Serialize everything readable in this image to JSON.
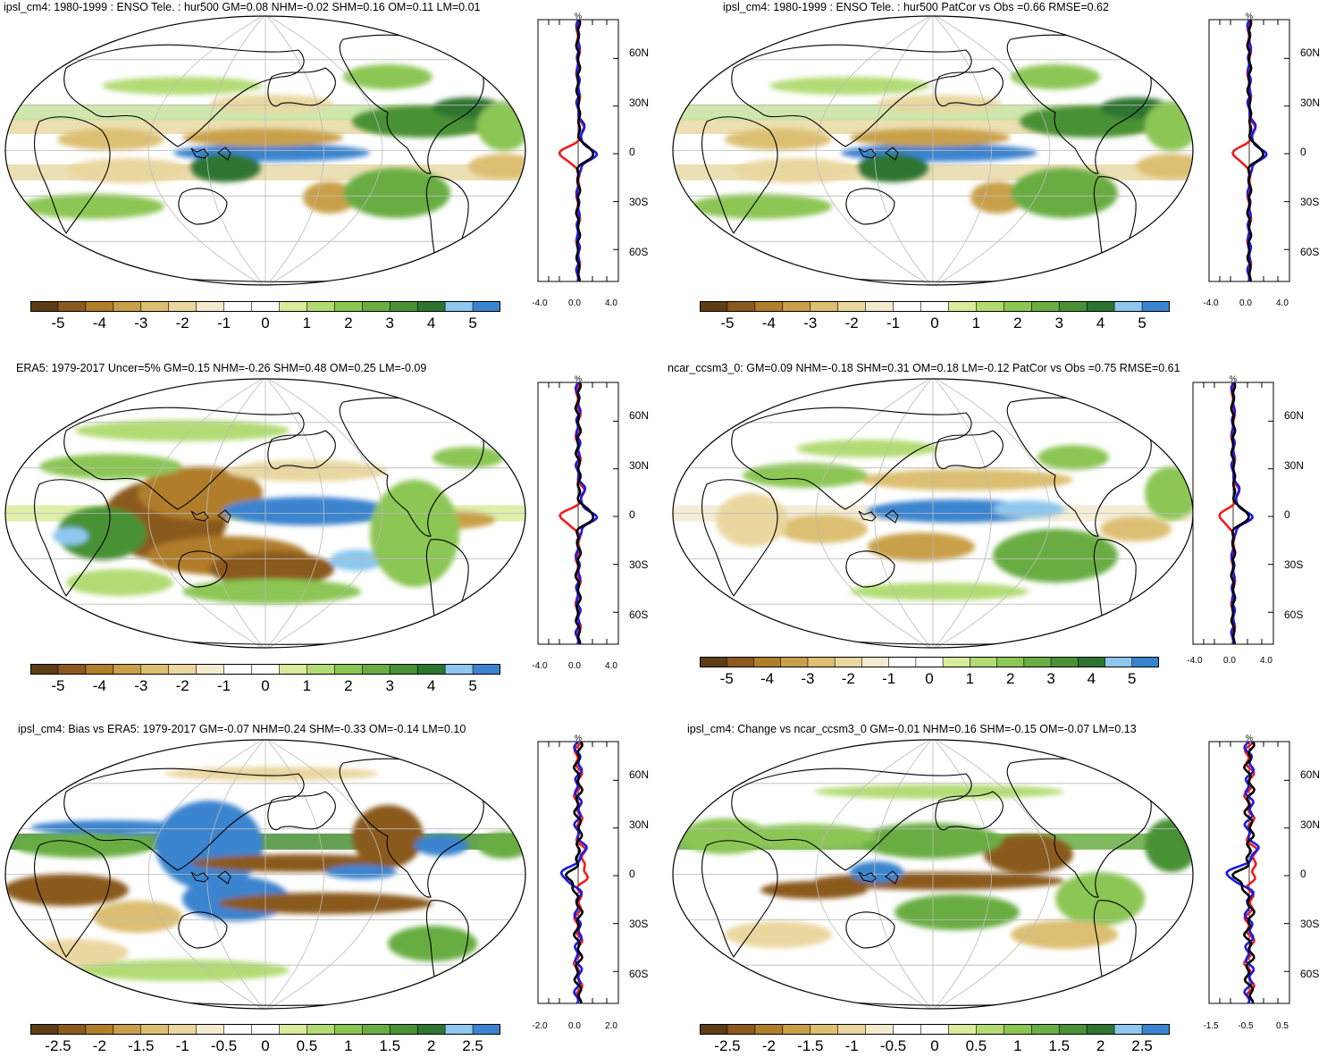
{
  "colors": {
    "scale_5": [
      "#5c3d14",
      "#8a5a1e",
      "#b07d2a",
      "#c9a04a",
      "#dcbf72",
      "#ead7a0",
      "#f3ead0",
      "#ffffff",
      "#ffffff",
      "#d8ec9c",
      "#b2db74",
      "#8cc654",
      "#69ad43",
      "#4a9136",
      "#2d7431",
      "#8ec8ee",
      "#3a84cf"
    ],
    "profile_red": "#ee1c1c",
    "profile_blue": "#1a1ae6",
    "profile_black": "#000000"
  },
  "panels": [
    {
      "id": "p1",
      "title": "ipsl_cm4: 1980-1999 : ENSO Tele. : hur500 GM=0.08 NHM=-0.02 SHM=0.16 OM=0.11 LM=0.01",
      "colorbar_labels": [
        "-5",
        "-4",
        "-3",
        "-2",
        "-1",
        "0",
        "1",
        "2",
        "3",
        "4",
        "5"
      ],
      "profile_xticks": [
        "-4.0",
        "0.0",
        "4.0"
      ],
      "profile_unit": "%",
      "lat_labels": [
        "60N",
        "30N",
        "0",
        "30S",
        "60S"
      ]
    },
    {
      "id": "p2",
      "title": "ipsl_cm4: 1980-1999 : ENSO Tele. : hur500 PatCor vs Obs =0.66 RMSE=0.62",
      "colorbar_labels": [
        "-5",
        "-4",
        "-3",
        "-2",
        "-1",
        "0",
        "1",
        "2",
        "3",
        "4",
        "5"
      ],
      "profile_xticks": [
        "-4.0",
        "0.0",
        "4.0"
      ],
      "profile_unit": "%",
      "lat_labels": [
        "60N",
        "30N",
        "0",
        "30S",
        "60S"
      ]
    },
    {
      "id": "p3",
      "title": "ERA5: 1979-2017 Uncer=5% GM=0.15 NHM=-0.26 SHM=0.48 OM=0.25 LM=-0.09",
      "colorbar_labels": [
        "-5",
        "-4",
        "-3",
        "-2",
        "-1",
        "0",
        "1",
        "2",
        "3",
        "4",
        "5"
      ],
      "profile_xticks": [
        "-4.0",
        "0.0",
        "4.0"
      ],
      "profile_unit": "%",
      "lat_labels": [
        "60N",
        "30N",
        "0",
        "30S",
        "60S"
      ]
    },
    {
      "id": "p4",
      "title": "ncar_ccsm3_0: GM=0.09 NHM=-0.18 SHM=0.31 OM=0.18 LM=-0.12 PatCor vs Obs =0.75 RMSE=0.61",
      "colorbar_labels": [
        "-5",
        "-4",
        "-3",
        "-2",
        "-1",
        "0",
        "1",
        "2",
        "3",
        "4",
        "5"
      ],
      "profile_xticks": [
        "-4.0",
        "0.0",
        "4.0"
      ],
      "profile_unit": "%",
      "lat_labels": [
        "60N",
        "30N",
        "0",
        "30S",
        "60S"
      ]
    },
    {
      "id": "p5",
      "title": "ipsl_cm4: Bias vs ERA5: 1979-2017 GM=-0.07 NHM=0.24 SHM=-0.33 OM=-0.14 LM=0.10",
      "colorbar_labels": [
        "-2.5",
        "-2",
        "-1.5",
        "-1",
        "-0.5",
        "0",
        "0.5",
        "1",
        "1.5",
        "2",
        "2.5"
      ],
      "profile_xticks": [
        "-2.0",
        "0.0",
        "2.0"
      ],
      "profile_unit": "%",
      "lat_labels": [
        "60N",
        "30N",
        "0",
        "30S",
        "60S"
      ]
    },
    {
      "id": "p6",
      "title": "ipsl_cm4: Change vs ncar_ccsm3_0 GM=-0.01 NHM=0.16 SHM=-0.15 OM=-0.07 LM=0.13",
      "colorbar_labels": [
        "-2.5",
        "-2",
        "-1.5",
        "-1",
        "-0.5",
        "0",
        "0.5",
        "1",
        "1.5",
        "2",
        "2.5"
      ],
      "profile_xticks": [
        "-1.5",
        "-0.5",
        "0.5"
      ],
      "profile_unit": "%",
      "lat_labels": [
        "60N",
        "30N",
        "0",
        "30S",
        "60S"
      ]
    }
  ]
}
